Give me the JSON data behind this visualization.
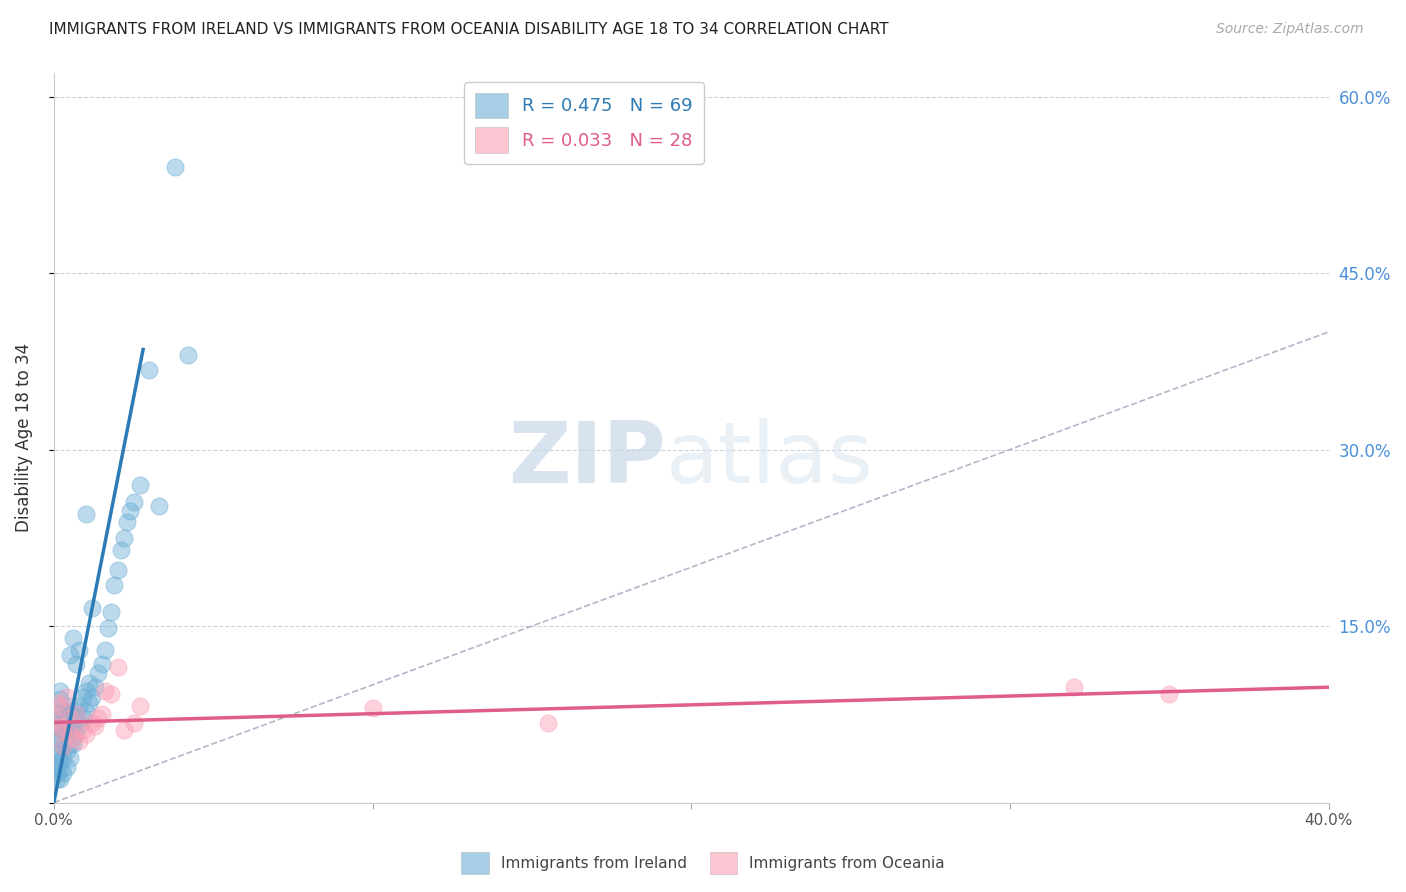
{
  "title": "IMMIGRANTS FROM IRELAND VS IMMIGRANTS FROM OCEANIA DISABILITY AGE 18 TO 34 CORRELATION CHART",
  "source": "Source: ZipAtlas.com",
  "ylabel": "Disability Age 18 to 34",
  "xlim": [
    0.0,
    0.4
  ],
  "ylim": [
    0.0,
    0.62
  ],
  "xticks": [
    0.0,
    0.1,
    0.2,
    0.3,
    0.4
  ],
  "xtick_labels": [
    "0.0%",
    "",
    "",
    "",
    "40.0%"
  ],
  "yticks_right": [
    0.0,
    0.15,
    0.3,
    0.45,
    0.6
  ],
  "ytick_labels_right": [
    "",
    "15.0%",
    "30.0%",
    "45.0%",
    "60.0%"
  ],
  "ireland_color": "#6baed6",
  "oceania_color": "#fa9fb5",
  "ireland_line_color": "#2c7bb6",
  "oceania_line_color": "#e05c8a",
  "diag_color": "#b0b8c8",
  "ireland_R": 0.475,
  "ireland_N": 69,
  "oceania_R": 0.033,
  "oceania_N": 28,
  "watermark": "ZIPatlas",
  "ireland_x": [
    0.001,
    0.001,
    0.001,
    0.001,
    0.001,
    0.001,
    0.002,
    0.002,
    0.002,
    0.002,
    0.002,
    0.002,
    0.002,
    0.002,
    0.002,
    0.002,
    0.003,
    0.003,
    0.003,
    0.003,
    0.003,
    0.003,
    0.004,
    0.004,
    0.004,
    0.004,
    0.004,
    0.005,
    0.005,
    0.005,
    0.005,
    0.005,
    0.006,
    0.006,
    0.006,
    0.006,
    0.007,
    0.007,
    0.007,
    0.008,
    0.008,
    0.008,
    0.009,
    0.009,
    0.01,
    0.01,
    0.01,
    0.011,
    0.011,
    0.012,
    0.012,
    0.013,
    0.014,
    0.015,
    0.016,
    0.017,
    0.018,
    0.019,
    0.02,
    0.021,
    0.022,
    0.023,
    0.024,
    0.025,
    0.027,
    0.03,
    0.033,
    0.038,
    0.042
  ],
  "ireland_y": [
    0.02,
    0.025,
    0.03,
    0.04,
    0.055,
    0.065,
    0.02,
    0.028,
    0.035,
    0.045,
    0.055,
    0.065,
    0.072,
    0.08,
    0.088,
    0.095,
    0.025,
    0.038,
    0.048,
    0.06,
    0.068,
    0.078,
    0.03,
    0.045,
    0.058,
    0.07,
    0.082,
    0.038,
    0.05,
    0.062,
    0.075,
    0.125,
    0.05,
    0.062,
    0.078,
    0.14,
    0.058,
    0.075,
    0.118,
    0.065,
    0.082,
    0.13,
    0.072,
    0.09,
    0.078,
    0.095,
    0.245,
    0.085,
    0.102,
    0.09,
    0.165,
    0.098,
    0.11,
    0.118,
    0.13,
    0.148,
    0.162,
    0.185,
    0.198,
    0.215,
    0.225,
    0.238,
    0.248,
    0.255,
    0.27,
    0.368,
    0.252,
    0.54,
    0.38
  ],
  "oceania_x": [
    0.001,
    0.001,
    0.002,
    0.002,
    0.003,
    0.003,
    0.004,
    0.005,
    0.005,
    0.006,
    0.007,
    0.008,
    0.009,
    0.01,
    0.012,
    0.013,
    0.014,
    0.015,
    0.016,
    0.018,
    0.02,
    0.022,
    0.025,
    0.027,
    0.1,
    0.155,
    0.32,
    0.35
  ],
  "oceania_y": [
    0.07,
    0.085,
    0.065,
    0.082,
    0.048,
    0.06,
    0.09,
    0.058,
    0.072,
    0.055,
    0.075,
    0.052,
    0.062,
    0.058,
    0.068,
    0.065,
    0.072,
    0.075,
    0.095,
    0.092,
    0.115,
    0.062,
    0.068,
    0.082,
    0.08,
    0.068,
    0.098,
    0.092
  ],
  "ireland_line_x": [
    0.0,
    0.028
  ],
  "ireland_line_y": [
    0.0,
    0.385
  ],
  "oceania_line_x": [
    0.0,
    0.4
  ],
  "oceania_line_y": [
    0.068,
    0.098
  ]
}
